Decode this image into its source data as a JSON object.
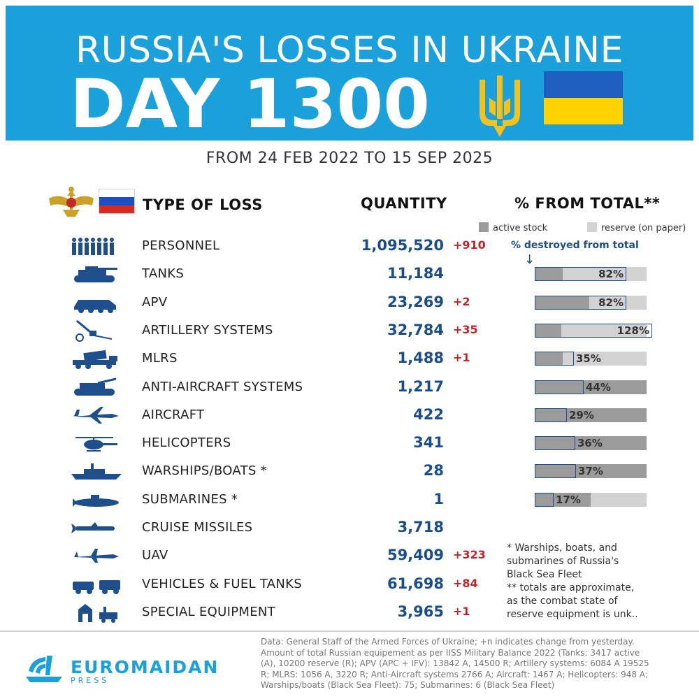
{
  "colors": {
    "banner_bg": "#1aa0db",
    "ukraine_blue": "#1f5fbf",
    "ukraine_yellow": "#ffd200",
    "trident": "#f4c21c",
    "quantity_text": "#1a4e8a",
    "delta_text": "#c0262b",
    "active_stock": "#9b9b9b",
    "reserve": "#d2d2d2",
    "destroyed_outline": "#1f4e8c",
    "brand": "#1aa0db"
  },
  "banner": {
    "title": "RUSSIA'S LOSSES IN UKRAINE",
    "day": "DAY 1300"
  },
  "subtitle": "FROM 24 FEB 2022 TO 15 SEP 2025",
  "headers": {
    "type": "TYPE OF LOSS",
    "quantity": "QUANTITY",
    "percent": "% FROM TOTAL**"
  },
  "legend": {
    "active": "active stock",
    "reserve": "reserve (on paper)",
    "destroyed": "% destroyed from total"
  },
  "chart_data": {
    "type": "table",
    "columns": [
      "TYPE OF LOSS",
      "QUANTITY",
      "% FROM TOTAL**"
    ],
    "rows": [
      {
        "icon": "soldiers-icon",
        "label": "PERSONNEL",
        "quantity": "1,095,520",
        "delta": "+910"
      },
      {
        "icon": "tank-icon",
        "label": "TANKS",
        "quantity": "11,184",
        "delta": "",
        "pct": 82,
        "pct_label": "82%",
        "active_share": 0.25
      },
      {
        "icon": "apv-icon",
        "label": "APV",
        "quantity": "23,269",
        "delta": "+2",
        "pct": 82,
        "pct_label": "82%",
        "active_share": 0.49
      },
      {
        "icon": "artillery-icon",
        "label": "ARTILLERY SYSTEMS",
        "quantity": "32,784",
        "delta": "+35",
        "pct": 128,
        "pct_label": "128%",
        "active_share": 0.24
      },
      {
        "icon": "mlrs-icon",
        "label": "MLRS",
        "quantity": "1,488",
        "delta": "+1",
        "pct": 35,
        "pct_label": "35%",
        "active_share": 0.25
      },
      {
        "icon": "anti-aircraft-icon",
        "label": "ANTI-AIRCRAFT SYSTEMS",
        "quantity": "1,217",
        "delta": "",
        "pct": 44,
        "pct_label": "44%",
        "active_share": 1.0
      },
      {
        "icon": "aircraft-icon",
        "label": "AIRCRAFT",
        "quantity": "422",
        "delta": "",
        "pct": 29,
        "pct_label": "29%",
        "active_share": 1.0
      },
      {
        "icon": "helicopter-icon",
        "label": "HELICOPTERS",
        "quantity": "341",
        "delta": "",
        "pct": 36,
        "pct_label": "36%",
        "active_share": 1.0
      },
      {
        "icon": "warship-icon",
        "label": "WARSHIPS/BOATS *",
        "quantity": "28",
        "delta": "",
        "pct": 37,
        "pct_label": "37%",
        "active_share": 1.0
      },
      {
        "icon": "submarine-icon",
        "label": "SUBMARINES *",
        "quantity": "1",
        "delta": "",
        "pct": 17,
        "pct_label": "17%",
        "active_share": 0.5
      },
      {
        "icon": "cruise-missile-icon",
        "label": "CRUISE MISSILES",
        "quantity": "3,718",
        "delta": ""
      },
      {
        "icon": "uav-icon",
        "label": "UAV",
        "quantity": "59,409",
        "delta": "+323"
      },
      {
        "icon": "vehicles-icon",
        "label": "VEHICLES & FUEL TANKS",
        "quantity": "61,698",
        "delta": "+84"
      },
      {
        "icon": "special-equipment-icon",
        "label": "SPECIAL EQUIPMENT",
        "quantity": "3,965",
        "delta": "+1"
      }
    ]
  },
  "notes": [
    "* Warships, boats, and",
    "submarines of Russia's",
    "Black Sea Fleet",
    "** totals are approximate,",
    "as the combat state of",
    "reserve equipment is unk.."
  ],
  "footer": {
    "brand_name": "EUROMAIDAN",
    "brand_sub": "PRESS",
    "source_lines": [
      "Data: General Staff of the Armed Forces of Ukraine; +n indicates change from yesterday.",
      "Amount of total Russian equipement as per IISS Military Balance 2022 (Tanks: 3417 active",
      "(A), 10200 reserve (R); APV (APC + IFV): 13842 A, 14500 R; Artillery systems: 6084 A 19525",
      "R; MLRS: 1056 A, 3220 R; Anti-Aircraft systems 2766 A; Aircraft: 1467 A; Helicopters: 948 A;",
      "Warships/boats (Black Sea Fleet): 75; Submarines: 6 (Black Sea Fleet)"
    ]
  }
}
